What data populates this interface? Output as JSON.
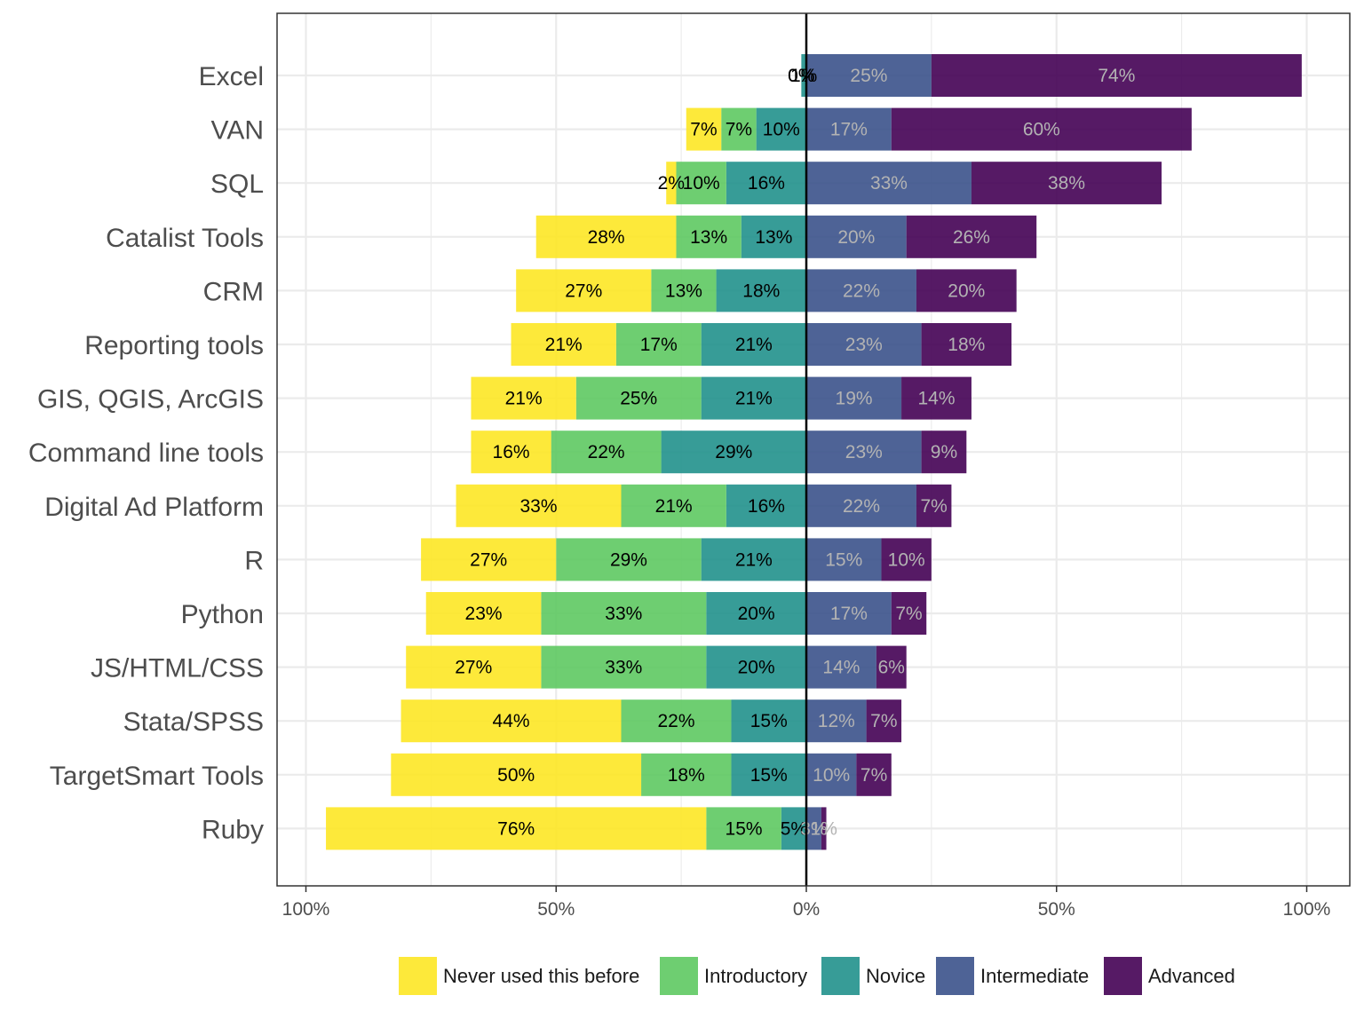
{
  "chart_data": {
    "type": "bar",
    "orientation": "horizontal",
    "layout": "diverging-stacked",
    "title": "",
    "xlabel": "",
    "ylabel": "",
    "xlim": [
      -100,
      100
    ],
    "x_ticks": [
      {
        "value": -100,
        "label": "100%"
      },
      {
        "value": -50,
        "label": "50%"
      },
      {
        "value": 0,
        "label": "0%"
      },
      {
        "value": 50,
        "label": "50%"
      },
      {
        "value": 100,
        "label": "100%"
      }
    ],
    "grid": true,
    "legend_position": "bottom",
    "series": [
      {
        "name": "Never used this before",
        "side": "left",
        "color": "#fde725",
        "text_color": "#000000"
      },
      {
        "name": "Introductory",
        "side": "left",
        "color": "#5ec962",
        "text_color": "#000000"
      },
      {
        "name": "Novice",
        "side": "left",
        "color": "#21918c",
        "text_color": "#000000"
      },
      {
        "name": "Intermediate",
        "side": "right",
        "color": "#3b528b",
        "text_color": "#b3b3b3"
      },
      {
        "name": "Advanced",
        "side": "right",
        "color": "#440154",
        "text_color": "#b3b3b3"
      }
    ],
    "categories": [
      "Excel",
      "VAN",
      "SQL",
      "Catalist Tools",
      "CRM",
      "Reporting tools",
      "GIS, QGIS, ArcGIS",
      "Command line tools",
      "Digital Ad Platform",
      "R",
      "Python",
      "JS/HTML/CSS",
      "Stata/SPSS",
      "TargetSmart Tools",
      "Ruby"
    ],
    "values": [
      [
        0,
        0,
        1,
        25,
        74
      ],
      [
        7,
        7,
        10,
        17,
        60
      ],
      [
        2,
        10,
        16,
        33,
        38
      ],
      [
        28,
        13,
        13,
        20,
        26
      ],
      [
        27,
        13,
        18,
        22,
        20
      ],
      [
        21,
        17,
        21,
        23,
        18
      ],
      [
        21,
        25,
        21,
        19,
        14
      ],
      [
        16,
        22,
        29,
        23,
        9
      ],
      [
        33,
        21,
        16,
        22,
        7
      ],
      [
        27,
        29,
        21,
        15,
        10
      ],
      [
        23,
        33,
        20,
        17,
        7
      ],
      [
        27,
        33,
        20,
        14,
        6
      ],
      [
        44,
        22,
        15,
        12,
        7
      ],
      [
        50,
        18,
        15,
        10,
        7
      ],
      [
        76,
        15,
        5,
        3,
        1
      ]
    ],
    "labels": [
      [
        "0%",
        "0%",
        "1%",
        "25%",
        "74%"
      ],
      [
        "7%",
        "7%",
        "10%",
        "17%",
        "60%"
      ],
      [
        "2%",
        "10%",
        "16%",
        "33%",
        "38%"
      ],
      [
        "28%",
        "13%",
        "13%",
        "20%",
        "26%"
      ],
      [
        "27%",
        "13%",
        "18%",
        "22%",
        "20%"
      ],
      [
        "21%",
        "17%",
        "21%",
        "23%",
        "18%"
      ],
      [
        "21%",
        "25%",
        "21%",
        "19%",
        "14%"
      ],
      [
        "16%",
        "22%",
        "29%",
        "23%",
        "9%"
      ],
      [
        "33%",
        "21%",
        "16%",
        "22%",
        "7%"
      ],
      [
        "27%",
        "29%",
        "21%",
        "15%",
        "10%"
      ],
      [
        "23%",
        "33%",
        "20%",
        "17%",
        "7%"
      ],
      [
        "27%",
        "33%",
        "20%",
        "14%",
        "6%"
      ],
      [
        "44%",
        "22%",
        "15%",
        "12%",
        "7%"
      ],
      [
        "50%",
        "18%",
        "15%",
        "10%",
        "7%"
      ],
      [
        "76%",
        "15%",
        "5%",
        "3%",
        "1%"
      ]
    ]
  }
}
